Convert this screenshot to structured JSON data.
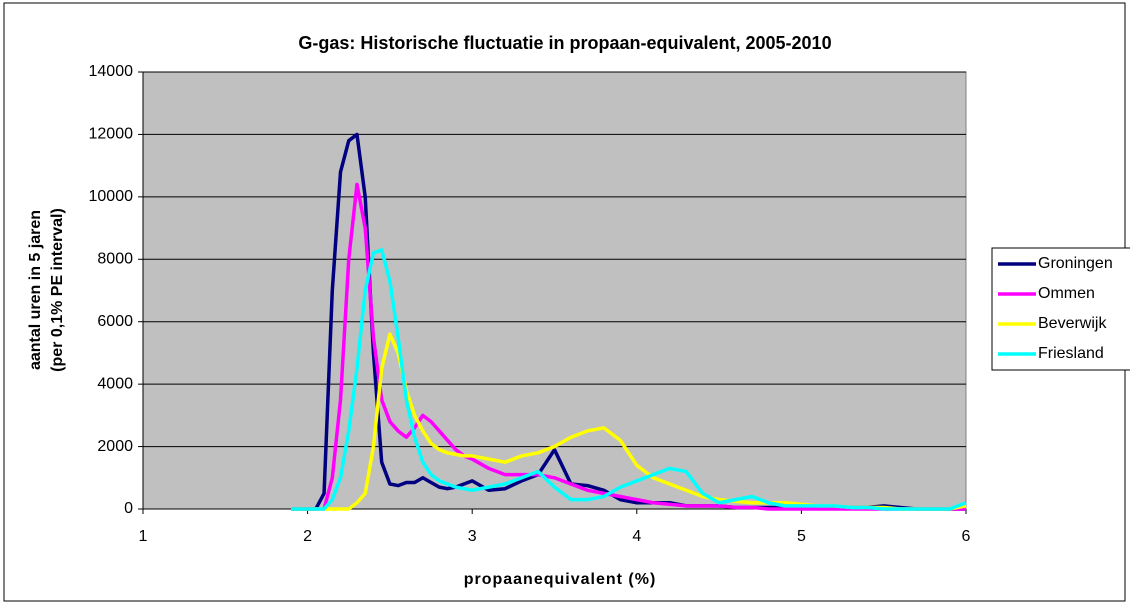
{
  "chart_data": {
    "type": "line",
    "title": "G-gas: Historische fluctuatie in propaan-equivalent, 2005-2010",
    "x_label": "propaanequivalent (%)",
    "y_label": [
      "aantal uren in 5 jaren",
      "(per 0,1% PE interval)"
    ],
    "x": [
      1.9,
      1.95,
      2.0,
      2.05,
      2.1,
      2.15,
      2.2,
      2.25,
      2.3,
      2.35,
      2.4,
      2.45,
      2.5,
      2.55,
      2.6,
      2.65,
      2.7,
      2.75,
      2.8,
      2.85,
      2.9,
      2.95,
      3.0,
      3.1,
      3.2,
      3.3,
      3.4,
      3.5,
      3.6,
      3.7,
      3.8,
      3.9,
      4.0,
      4.1,
      4.2,
      4.3,
      4.4,
      4.5,
      4.6,
      4.7,
      4.8,
      4.9,
      5.0,
      5.1,
      5.2,
      5.3,
      5.4,
      5.5,
      5.6,
      5.7,
      5.8,
      5.9,
      6.0
    ],
    "series": [
      {
        "name": "Groningen",
        "color": "#000080",
        "values": [
          0,
          0,
          0,
          0,
          500,
          7000,
          10800,
          11800,
          12000,
          10000,
          5000,
          1500,
          800,
          750,
          850,
          850,
          1000,
          850,
          700,
          650,
          700,
          800,
          900,
          600,
          650,
          900,
          1100,
          1900,
          800,
          750,
          600,
          300,
          200,
          200,
          200,
          100,
          100,
          100,
          50,
          50,
          50,
          50,
          50,
          50,
          50,
          50,
          50,
          100,
          50,
          0,
          0,
          0,
          0
        ]
      },
      {
        "name": "Ommen",
        "color": "#ff00ff",
        "values": [
          0,
          0,
          0,
          0,
          0,
          1000,
          3500,
          8000,
          10400,
          9000,
          5500,
          3500,
          2800,
          2500,
          2300,
          2600,
          3000,
          2800,
          2500,
          2200,
          1900,
          1700,
          1600,
          1300,
          1100,
          1100,
          1100,
          1000,
          800,
          600,
          500,
          400,
          300,
          200,
          150,
          100,
          100,
          100,
          50,
          50,
          0,
          0,
          0,
          0,
          0,
          0,
          0,
          0,
          0,
          0,
          0,
          0,
          0
        ]
      },
      {
        "name": "Beverwijk",
        "color": "#ffff00",
        "values": [
          0,
          0,
          0,
          0,
          0,
          0,
          0,
          0,
          200,
          500,
          2000,
          4500,
          5600,
          5000,
          3800,
          3000,
          2500,
          2100,
          1900,
          1800,
          1750,
          1700,
          1700,
          1600,
          1500,
          1700,
          1800,
          2000,
          2300,
          2500,
          2600,
          2200,
          1400,
          1000,
          800,
          600,
          400,
          300,
          250,
          200,
          200,
          200,
          150,
          100,
          100,
          50,
          50,
          50,
          0,
          0,
          0,
          0,
          100
        ]
      },
      {
        "name": "Friesland",
        "color": "#00ffff",
        "values": [
          0,
          0,
          0,
          0,
          0,
          300,
          1000,
          2500,
          4500,
          7000,
          8200,
          8300,
          7300,
          5500,
          3500,
          2300,
          1500,
          1100,
          900,
          800,
          700,
          650,
          600,
          700,
          800,
          1000,
          1200,
          700,
          300,
          300,
          400,
          700,
          900,
          1100,
          1300,
          1200,
          500,
          200,
          300,
          400,
          200,
          100,
          100,
          100,
          100,
          50,
          50,
          0,
          0,
          0,
          0,
          0,
          200
        ]
      }
    ],
    "xlim": [
      1,
      6
    ],
    "xticks": [
      1,
      2,
      3,
      4,
      5,
      6
    ],
    "ylim": [
      0,
      14000
    ],
    "yticks": [
      0,
      2000,
      4000,
      6000,
      8000,
      10000,
      12000,
      14000
    ],
    "grid": true,
    "legend": "right"
  }
}
